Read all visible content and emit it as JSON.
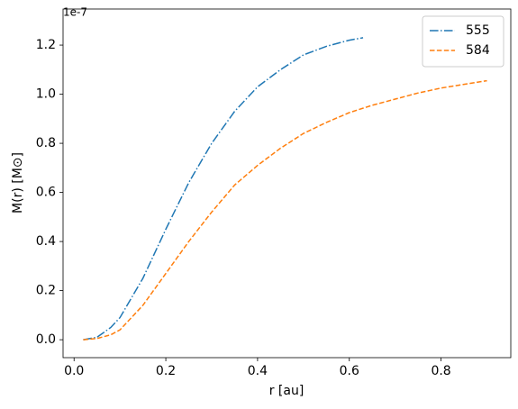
{
  "chart_data": {
    "type": "line",
    "x_label": "r [au]",
    "y_label": "M(r) [M⊙]",
    "y_offset_label": "1e-7",
    "xlim": [
      -0.024,
      0.952
    ],
    "ylim": [
      -0.073,
      1.347
    ],
    "xticks": [
      {
        "value": 0,
        "label": "0.0"
      },
      0.2,
      0.4,
      0.6,
      0.8
    ],
    "yticks": [
      {
        "value": 0,
        "label": "0.0"
      },
      0.2,
      0.4,
      0.6,
      0.8,
      {
        "value": 1,
        "label": "1.0"
      },
      1.2
    ],
    "grid": false,
    "legend": "upper right",
    "series": [
      {
        "name": "555",
        "color": "#1f77b4",
        "dash": "dashdot",
        "x": [
          0.02,
          0.05,
          0.08,
          0.1,
          0.15,
          0.2,
          0.25,
          0.3,
          0.35,
          0.4,
          0.45,
          0.5,
          0.55,
          0.6,
          0.63
        ],
        "values": [
          0,
          0.01,
          0.05,
          0.09,
          0.25,
          0.45,
          0.64,
          0.8,
          0.93,
          1.03,
          1.1,
          1.16,
          1.195,
          1.22,
          1.23
        ]
      },
      {
        "name": "584",
        "color": "#ff7f0e",
        "dash": "dashed",
        "x": [
          0.02,
          0.05,
          0.08,
          0.1,
          0.15,
          0.2,
          0.25,
          0.3,
          0.35,
          0.4,
          0.45,
          0.5,
          0.55,
          0.6,
          0.65,
          0.7,
          0.75,
          0.8,
          0.85,
          0.9
        ],
        "values": [
          0,
          0.005,
          0.02,
          0.04,
          0.14,
          0.27,
          0.4,
          0.52,
          0.63,
          0.71,
          0.78,
          0.84,
          0.885,
          0.925,
          0.955,
          0.98,
          1.005,
          1.025,
          1.04,
          1.055
        ]
      }
    ]
  }
}
